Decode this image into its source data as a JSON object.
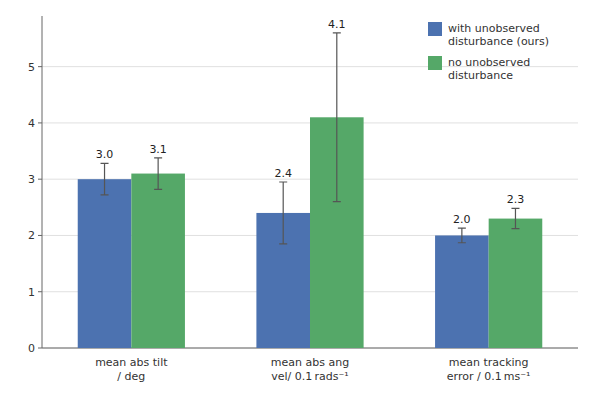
{
  "chart_data": {
    "type": "bar",
    "categories": [
      "mean abs tilt\n/ deg",
      "mean abs ang\nvel/ 0.1 rads⁻¹",
      "mean tracking\nerror / 0.1 ms⁻¹"
    ],
    "series": [
      {
        "name": "with unobserved\ndisturbance (ours)",
        "color": "#4C72B0",
        "values": [
          3.0,
          2.4,
          2.0
        ],
        "errors": [
          0.28,
          0.55,
          0.13
        ],
        "value_labels": [
          "3.0",
          "2.4",
          "2.0"
        ]
      },
      {
        "name": "no unobserved\ndisturbance",
        "color": "#55A868",
        "values": [
          3.1,
          4.1,
          2.3
        ],
        "errors": [
          0.28,
          1.5,
          0.18
        ],
        "value_labels": [
          "3.1",
          "4.1",
          "2.3"
        ]
      }
    ],
    "ylim": [
      0,
      5.9
    ],
    "yticks": [
      0,
      1,
      2,
      3,
      4,
      5
    ],
    "grid": true,
    "legend": "upper right",
    "data_labels": true
  }
}
